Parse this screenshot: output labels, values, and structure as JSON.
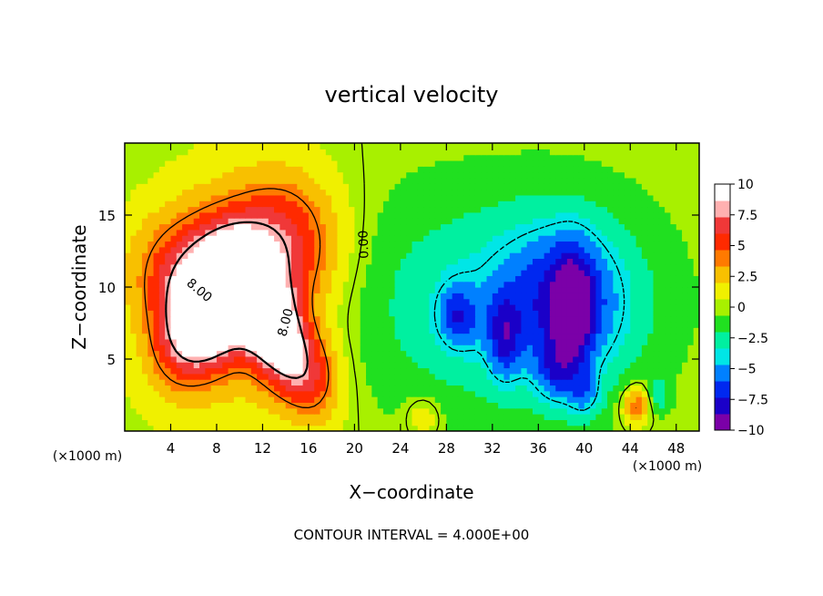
{
  "chart_data": {
    "type": "heatmap",
    "title": "vertical velocity",
    "xlabel": "X−coordinate",
    "ylabel": "Z−coordinate",
    "x_unit_left": "(×1000 m)",
    "x_unit_right": "(×1000 m)",
    "footer": "CONTOUR INTERVAL = 4.000E+00",
    "xlim": [
      0,
      50
    ],
    "ylim": [
      0,
      20
    ],
    "x_ticks": [
      4,
      8,
      12,
      16,
      20,
      24,
      28,
      32,
      36,
      40,
      44,
      48
    ],
    "x_tick_labels": [
      "4",
      "8",
      "12",
      "16",
      "20",
      "24",
      "28",
      "32",
      "36",
      "40",
      "44",
      "48"
    ],
    "y_ticks": [
      5,
      10,
      15
    ],
    "y_tick_labels": [
      "5",
      "10",
      "15"
    ],
    "colorbar": {
      "range": [
        -10,
        10
      ],
      "ticks": [
        10,
        7.5,
        5,
        2.5,
        0,
        -2.5,
        -5,
        -7.5,
        -10
      ],
      "tick_labels": [
        "10",
        "7.5",
        "5",
        "2.5",
        "0",
        "−2.5",
        "−5",
        "−7.5",
        "−10"
      ],
      "colors": [
        "#7b00a8",
        "#1a00c8",
        "#0028f0",
        "#0080ff",
        "#00e6e6",
        "#00f0a0",
        "#20e020",
        "#a8f000",
        "#f0f000",
        "#f8c000",
        "#ff7a00",
        "#ff2a00",
        "#f03838",
        "#ffb0b0",
        "#ffffff"
      ]
    },
    "contour_labels": [
      "8.00",
      "8.00",
      "0.00"
    ],
    "features": [
      {
        "x": 7.5,
        "z": 8.5,
        "value": 11.5,
        "sx": 2.2,
        "sz": 3.6,
        "angle": -40
      },
      {
        "x": 13,
        "z": 7.0,
        "value": 10,
        "sx": 1.8,
        "sz": 3.8,
        "angle": 35
      },
      {
        "x": 5.5,
        "z": 11,
        "value": 5,
        "sx": 3.6,
        "sz": 3.0,
        "angle": 0
      },
      {
        "x": 14,
        "z": 13,
        "value": 5,
        "sx": 3.5,
        "sz": 3.4,
        "angle": 0
      },
      {
        "x": 10.5,
        "z": 9,
        "value": 3,
        "sx": 5.5,
        "sz": 6.5,
        "angle": 0
      },
      {
        "x": 17,
        "z": 4,
        "value": 2,
        "sx": 1.6,
        "sz": 2.0,
        "angle": 0
      },
      {
        "x": 32,
        "z": 9,
        "value": -3.5,
        "sx": 9.5,
        "sz": 5.5,
        "angle": 0
      },
      {
        "x": 38.5,
        "z": 9,
        "value": -5,
        "sx": 4.0,
        "sz": 4.0,
        "angle": 0
      },
      {
        "x": 39,
        "z": 8.5,
        "value": -5,
        "sx": 1.2,
        "sz": 2.8,
        "angle": 0
      },
      {
        "x": 29,
        "z": 8,
        "value": -4,
        "sx": 1.2,
        "sz": 1.5,
        "angle": 0
      },
      {
        "x": 33,
        "z": 6.5,
        "value": -4,
        "sx": 1.0,
        "sz": 2.0,
        "angle": 0
      },
      {
        "x": 37.5,
        "z": 4,
        "value": -3,
        "sx": 1.2,
        "sz": 1.5,
        "angle": 0
      },
      {
        "x": 40,
        "z": 2.5,
        "value": -3,
        "sx": 1.0,
        "sz": 1.2,
        "angle": 0
      },
      {
        "x": 44.5,
        "z": 1.8,
        "value": 5,
        "sx": 0.9,
        "sz": 1.0,
        "angle": 0
      },
      {
        "x": 46.5,
        "z": 2.5,
        "value": -3,
        "sx": 0.6,
        "sz": 0.8,
        "angle": 0
      },
      {
        "x": 26,
        "z": 1.0,
        "value": 2.5,
        "sx": 1.0,
        "sz": 1.0,
        "angle": 0
      }
    ]
  }
}
